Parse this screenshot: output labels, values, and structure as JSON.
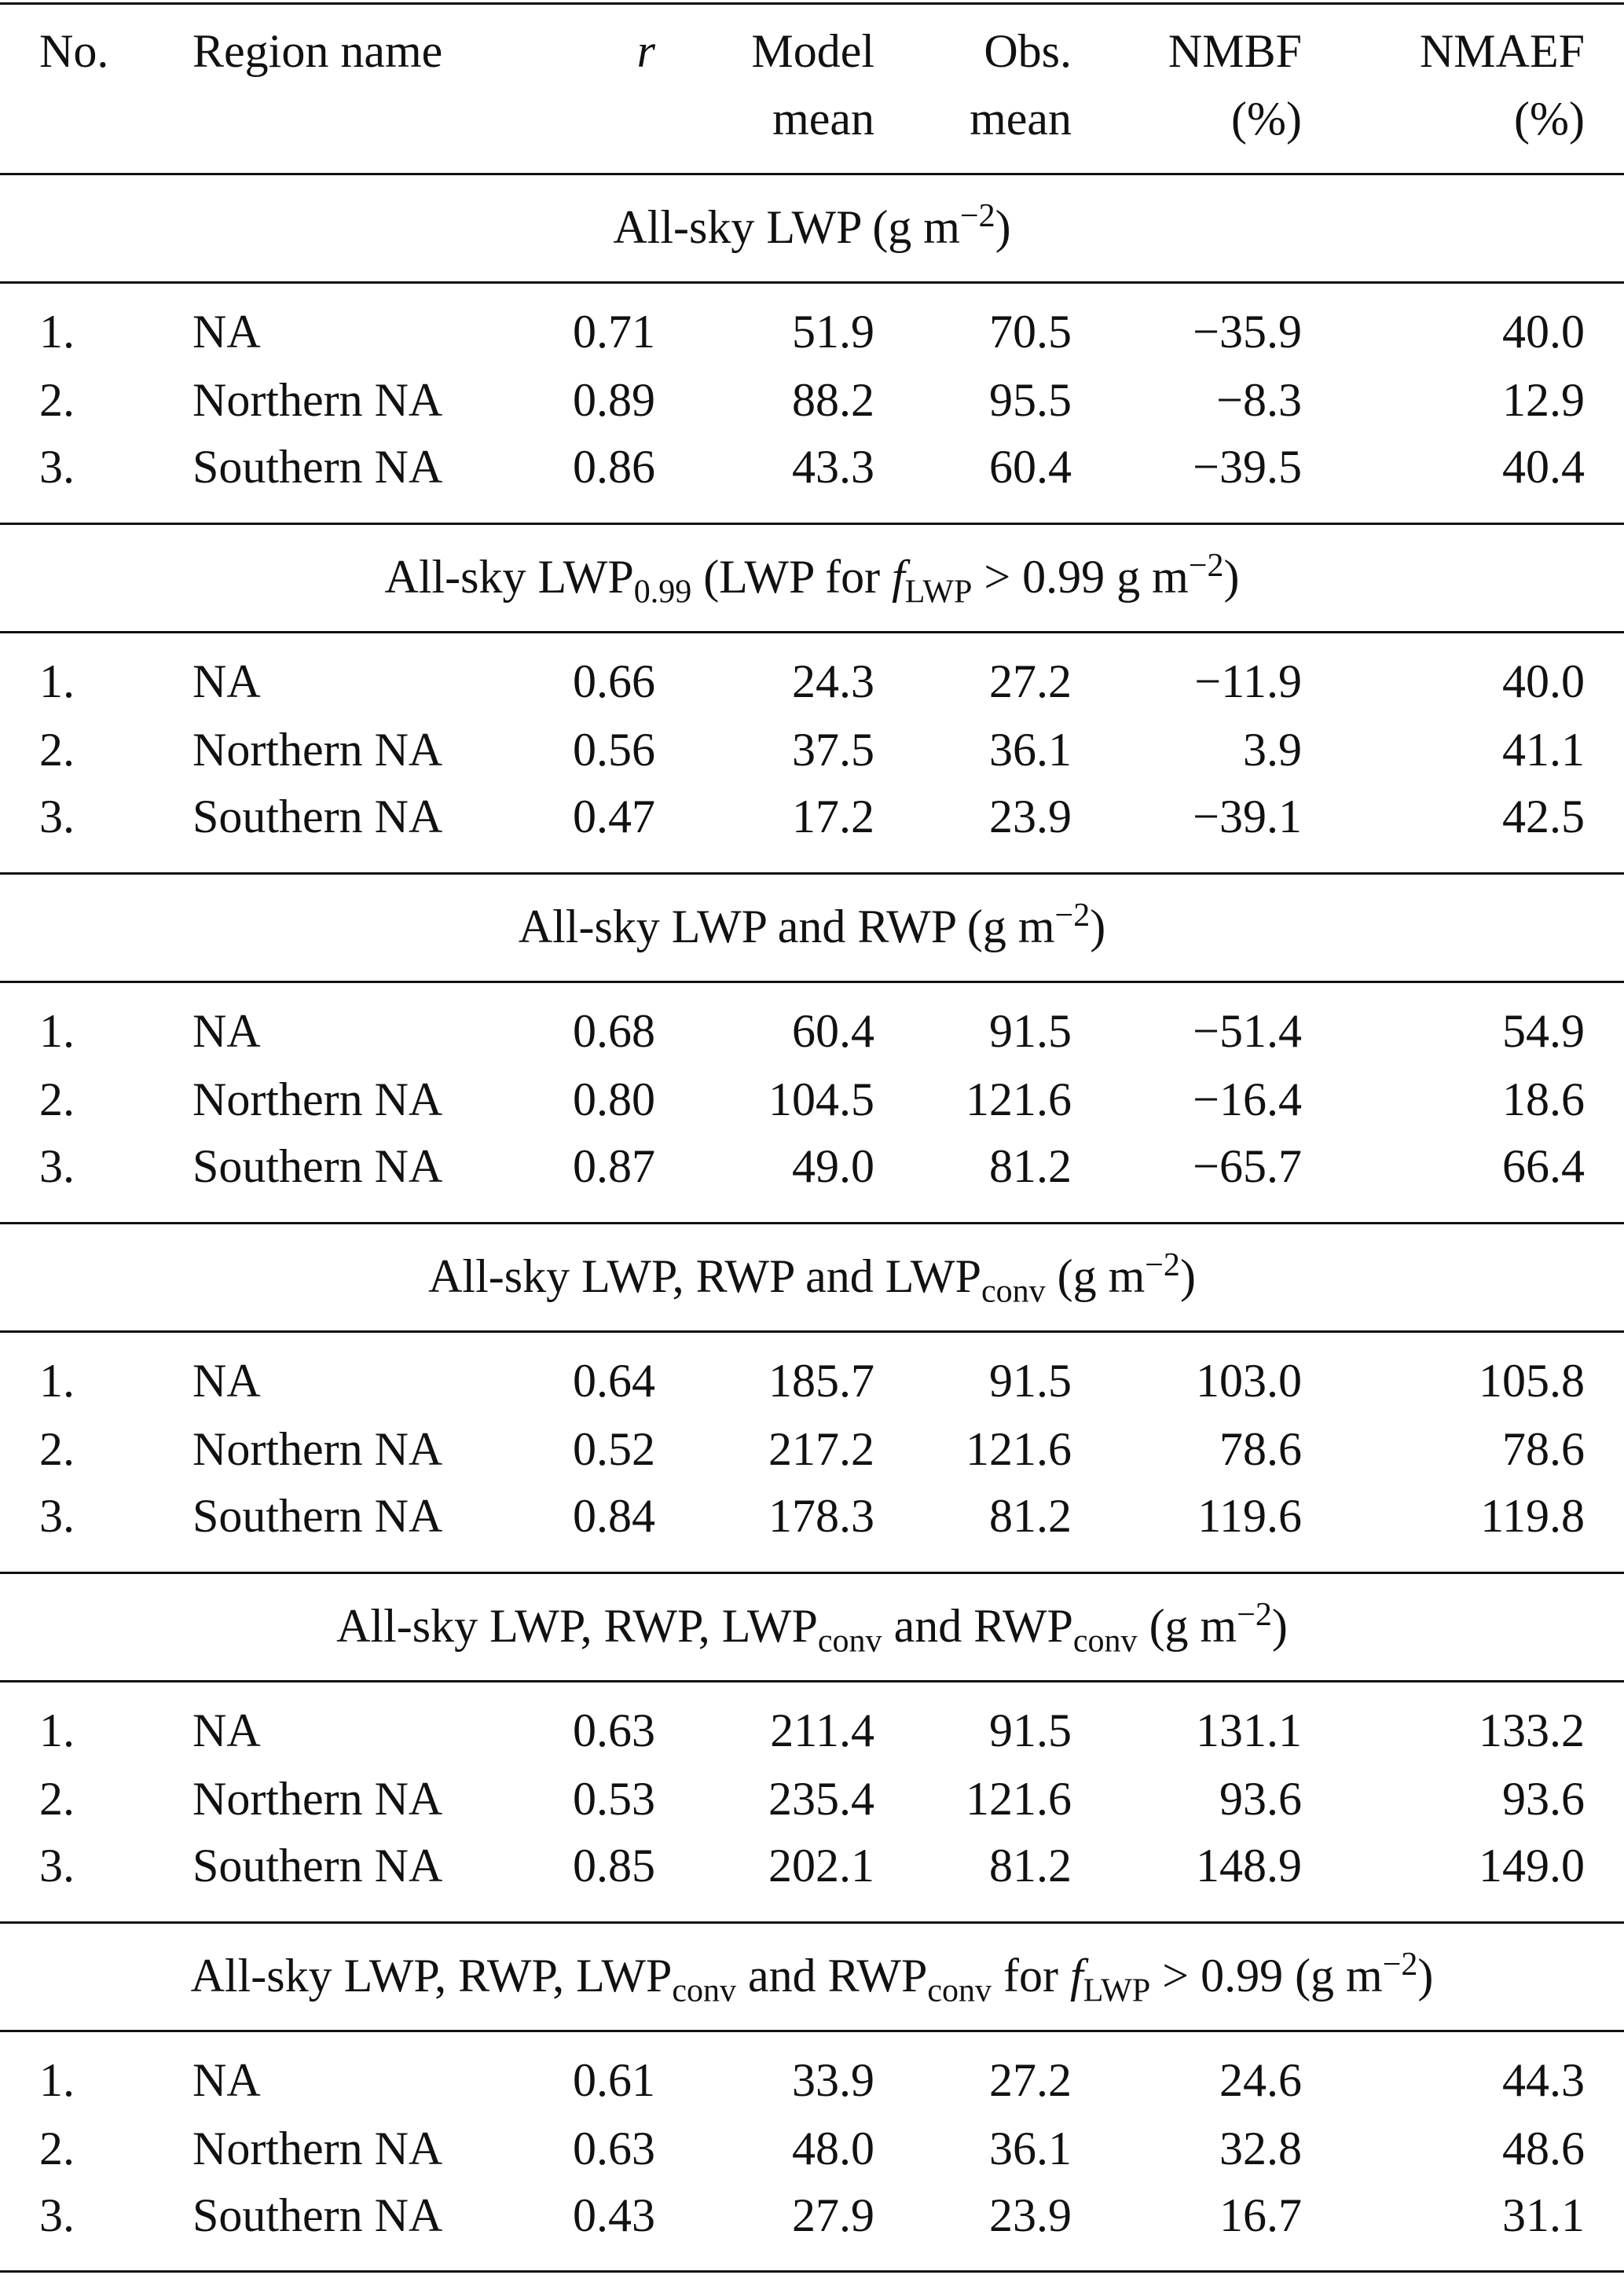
{
  "table": {
    "header": [
      [
        "No."
      ],
      [
        "Region name"
      ],
      [
        "r"
      ],
      [
        "Model",
        "mean"
      ],
      [
        "Obs.",
        "mean"
      ],
      [
        "NMBF",
        "(%)"
      ],
      [
        "NMAEF",
        "(%)"
      ]
    ],
    "sections": [
      {
        "title": [
          {
            "text": "All-sky LWP (g m"
          },
          {
            "text": "−2",
            "style": "sup"
          },
          {
            "text": ")"
          }
        ],
        "rows": [
          [
            "1.",
            "NA",
            "0.71",
            "51.9",
            "70.5",
            "−35.9",
            "40.0"
          ],
          [
            "2.",
            "Northern NA",
            "0.89",
            "88.2",
            "95.5",
            "−8.3",
            "12.9"
          ],
          [
            "3.",
            "Southern NA",
            "0.86",
            "43.3",
            "60.4",
            "−39.5",
            "40.4"
          ]
        ]
      },
      {
        "title": [
          {
            "text": "All-sky LWP"
          },
          {
            "text": "0.99",
            "style": "sub"
          },
          {
            "text": " (LWP for "
          },
          {
            "text": "f",
            "style": "italic"
          },
          {
            "text": "LWP",
            "style": "sub"
          },
          {
            "text": " > 0.99 g m"
          },
          {
            "text": "−2",
            "style": "sup"
          },
          {
            "text": ")"
          }
        ],
        "rows": [
          [
            "1.",
            "NA",
            "0.66",
            "24.3",
            "27.2",
            "−11.9",
            "40.0"
          ],
          [
            "2.",
            "Northern NA",
            "0.56",
            "37.5",
            "36.1",
            "3.9",
            "41.1"
          ],
          [
            "3.",
            "Southern NA",
            "0.47",
            "17.2",
            "23.9",
            "−39.1",
            "42.5"
          ]
        ]
      },
      {
        "title": [
          {
            "text": "All-sky LWP and RWP (g m"
          },
          {
            "text": "−2",
            "style": "sup"
          },
          {
            "text": ")"
          }
        ],
        "rows": [
          [
            "1.",
            "NA",
            "0.68",
            "60.4",
            "91.5",
            "−51.4",
            "54.9"
          ],
          [
            "2.",
            "Northern NA",
            "0.80",
            "104.5",
            "121.6",
            "−16.4",
            "18.6"
          ],
          [
            "3.",
            "Southern NA",
            "0.87",
            "49.0",
            "81.2",
            "−65.7",
            "66.4"
          ]
        ]
      },
      {
        "title": [
          {
            "text": "All-sky LWP, RWP and LWP"
          },
          {
            "text": "conv",
            "style": "sub"
          },
          {
            "text": " (g m"
          },
          {
            "text": "−2",
            "style": "sup"
          },
          {
            "text": ")"
          }
        ],
        "rows": [
          [
            "1.",
            "NA",
            "0.64",
            "185.7",
            "91.5",
            "103.0",
            "105.8"
          ],
          [
            "2.",
            "Northern NA",
            "0.52",
            "217.2",
            "121.6",
            "78.6",
            "78.6"
          ],
          [
            "3.",
            "Southern NA",
            "0.84",
            "178.3",
            "81.2",
            "119.6",
            "119.8"
          ]
        ]
      },
      {
        "title": [
          {
            "text": "All-sky LWP, RWP, LWP"
          },
          {
            "text": "conv",
            "style": "sub"
          },
          {
            "text": " and RWP"
          },
          {
            "text": "conv",
            "style": "sub"
          },
          {
            "text": " (g m"
          },
          {
            "text": "−2",
            "style": "sup"
          },
          {
            "text": ")"
          }
        ],
        "rows": [
          [
            "1.",
            "NA",
            "0.63",
            "211.4",
            "91.5",
            "131.1",
            "133.2"
          ],
          [
            "2.",
            "Northern NA",
            "0.53",
            "235.4",
            "121.6",
            "93.6",
            "93.6"
          ],
          [
            "3.",
            "Southern NA",
            "0.85",
            "202.1",
            "81.2",
            "148.9",
            "149.0"
          ]
        ]
      },
      {
        "title": [
          {
            "text": "All-sky LWP, RWP, LWP"
          },
          {
            "text": "conv",
            "style": "sub"
          },
          {
            "text": " and RWP"
          },
          {
            "text": "conv",
            "style": "sub"
          },
          {
            "text": " for "
          },
          {
            "text": "f",
            "style": "italic"
          },
          {
            "text": "LWP",
            "style": "sub"
          },
          {
            "text": " > 0.99 (g m"
          },
          {
            "text": "−2",
            "style": "sup"
          },
          {
            "text": ")"
          }
        ],
        "rows": [
          [
            "1.",
            "NA",
            "0.61",
            "33.9",
            "27.2",
            "24.6",
            "44.3"
          ],
          [
            "2.",
            "Northern NA",
            "0.63",
            "48.0",
            "36.1",
            "32.8",
            "48.6"
          ],
          [
            "3.",
            "Southern NA",
            "0.43",
            "27.9",
            "23.9",
            "16.7",
            "31.1"
          ]
        ]
      }
    ]
  }
}
